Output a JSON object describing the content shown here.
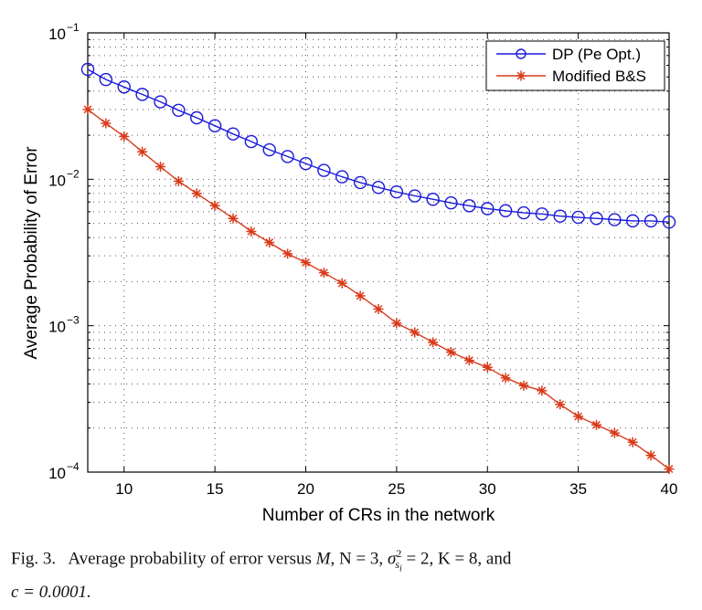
{
  "chart_data": {
    "type": "line",
    "title": "",
    "xlabel": "Number of CRs in the network",
    "ylabel": "Average Probability of Error",
    "xlim": [
      8,
      40
    ],
    "ylim": [
      0.0001,
      0.1
    ],
    "yscale": "log",
    "grid": true,
    "legend_position": "top-right",
    "x_ticks": [
      10,
      15,
      20,
      25,
      30,
      35,
      40
    ],
    "x_tick_labels": [
      "10",
      "15",
      "20",
      "25",
      "30",
      "35",
      "40"
    ],
    "y_ticks": [
      0.1,
      0.01,
      0.001,
      0.0001
    ],
    "y_tick_labels": [
      {
        "base": "10",
        "exp": "−1"
      },
      {
        "base": "10",
        "exp": "−2"
      },
      {
        "base": "10",
        "exp": "−3"
      },
      {
        "base": "10",
        "exp": "−4"
      }
    ],
    "x": [
      8,
      9,
      10,
      11,
      12,
      13,
      14,
      15,
      16,
      17,
      18,
      19,
      20,
      21,
      22,
      23,
      24,
      25,
      26,
      27,
      28,
      29,
      30,
      31,
      32,
      33,
      34,
      35,
      36,
      37,
      38,
      39,
      40
    ],
    "series": [
      {
        "name": "DP (Pe Opt.)",
        "color": "#1a1adb",
        "marker": "circle",
        "values": [
          0.0563,
          0.048,
          0.0427,
          0.038,
          0.0338,
          0.0296,
          0.0263,
          0.0232,
          0.0204,
          0.0181,
          0.0159,
          0.0143,
          0.0128,
          0.0115,
          0.0104,
          0.0095,
          0.0088,
          0.0082,
          0.0077,
          0.0073,
          0.0069,
          0.0066,
          0.0063,
          0.0061,
          0.0059,
          0.0058,
          0.0056,
          0.0055,
          0.0054,
          0.0053,
          0.0052,
          0.0052,
          0.0051
        ]
      },
      {
        "name": "Modified B&S",
        "color": "#d93a1a",
        "marker": "asterisk",
        "values": [
          0.03,
          0.0241,
          0.0196,
          0.0154,
          0.0122,
          0.0097,
          0.008,
          0.0066,
          0.0054,
          0.0044,
          0.0037,
          0.0031,
          0.0027,
          0.0023,
          0.00195,
          0.0016,
          0.0013,
          0.00104,
          0.0009,
          0.00077,
          0.00066,
          0.00058,
          0.00052,
          0.00044,
          0.00039,
          0.00036,
          0.00029,
          0.00024,
          0.00021,
          0.000185,
          0.00016,
          0.00013,
          0.000105
        ]
      }
    ]
  },
  "caption": {
    "fig_label": "Fig. 3.",
    "text_before": "Average probability of error versus ",
    "var_M": "M",
    "part_N": ", N = 3, ",
    "sigma": "σ",
    "sigma_sup": "2",
    "sigma_sub": "s",
    "sigma_subsub": "i",
    "part_K": " = 2, K = 8, and",
    "line2": "c = 0.0001."
  }
}
